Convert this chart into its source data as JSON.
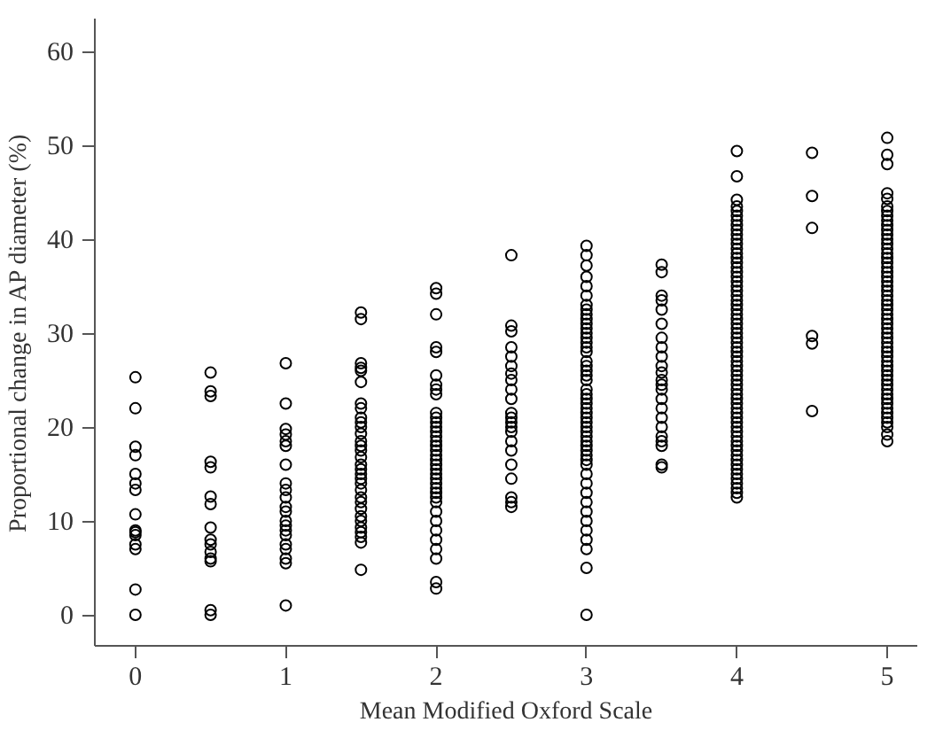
{
  "chart_data": {
    "type": "scatter",
    "xlabel": "Mean Modified Oxford Scale",
    "ylabel": "Proportional change in AP diameter (%)",
    "xlim": [
      -0.27,
      5.2
    ],
    "ylim": [
      -3.3,
      63.5
    ],
    "xticks": [
      0,
      1,
      2,
      3,
      4,
      5
    ],
    "yticks": [
      0,
      10,
      20,
      30,
      40,
      50,
      60
    ],
    "grid": false,
    "marker": "circle",
    "series": [
      {
        "color": "#000000",
        "x": [
          0,
          0,
          0,
          0,
          0,
          0,
          0,
          0,
          0,
          0,
          0,
          0,
          0,
          0,
          0
        ],
        "values": [
          25.3,
          22,
          17.9,
          17,
          15,
          14,
          13.3,
          10.7,
          9,
          8.8,
          8.5,
          7.5,
          7,
          2.7,
          0
        ]
      },
      {
        "color": "#000000",
        "x": [
          0.5,
          0.5,
          0.5,
          0.5,
          0.5,
          0.5,
          0.5,
          0.5,
          0.5,
          0.5,
          0.5,
          0.5,
          0.5,
          0.5,
          0.5
        ],
        "values": [
          25.8,
          23.8,
          23.3,
          16.3,
          15.7,
          12.6,
          11.8,
          9.3,
          8,
          7.5,
          6.7,
          6,
          5.7,
          0.5,
          0
        ]
      },
      {
        "color": "#000000",
        "x": [
          1,
          1,
          1,
          1,
          1,
          1,
          1,
          1,
          1,
          1,
          1,
          1,
          1,
          1,
          1,
          1,
          1,
          1,
          1,
          1,
          1
        ],
        "values": [
          26.8,
          22.5,
          19.8,
          19.2,
          18.5,
          18,
          16,
          14,
          13.3,
          12.5,
          11.5,
          11,
          10,
          9.5,
          9,
          8.5,
          7.5,
          7,
          6,
          5.5,
          1
        ]
      },
      {
        "color": "#000000",
        "x": [
          1.5,
          1.5,
          1.5,
          1.5,
          1.5,
          1.5,
          1.5,
          1.5,
          1.5,
          1.5,
          1.5,
          1.5,
          1.5,
          1.5,
          1.5,
          1.5,
          1.5,
          1.5,
          1.5,
          1.5,
          1.5,
          1.5,
          1.5,
          1.5,
          1.5,
          1.5,
          1.5,
          1.5,
          1.5,
          1.5,
          1.5,
          1.5
        ],
        "values": [
          32.2,
          31.5,
          26.8,
          26.3,
          26,
          24.8,
          22.5,
          22,
          21,
          20.5,
          20,
          19.3,
          18.5,
          18,
          17.5,
          16.8,
          16,
          15.5,
          15,
          14.5,
          14,
          13.3,
          12.5,
          12,
          11.3,
          10.5,
          10,
          9.3,
          8.8,
          8.3,
          7.7,
          4.8
        ]
      },
      {
        "color": "#000000",
        "x": [
          2,
          2,
          2,
          2,
          2,
          2,
          2,
          2,
          2,
          2,
          2,
          2,
          2,
          2,
          2,
          2,
          2,
          2,
          2,
          2,
          2,
          2,
          2,
          2,
          2,
          2,
          2,
          2,
          2,
          2,
          2,
          2,
          2,
          2,
          2,
          2,
          2
        ],
        "values": [
          34.8,
          34.2,
          32,
          28.5,
          28,
          25.5,
          24.5,
          24,
          23.5,
          21.5,
          21,
          20.5,
          20,
          19.5,
          19,
          18.5,
          18,
          17.5,
          17,
          16.5,
          16,
          15.5,
          15,
          14.5,
          14,
          13.5,
          13,
          12.5,
          12,
          11,
          10,
          9,
          8,
          7,
          6,
          3.5,
          2.8
        ]
      },
      {
        "color": "#000000",
        "x": [
          2.5,
          2.5,
          2.5,
          2.5,
          2.5,
          2.5,
          2.5,
          2.5,
          2.5,
          2.5,
          2.5,
          2.5,
          2.5,
          2.5,
          2.5,
          2.5,
          2.5,
          2.5,
          2.5,
          2.5,
          2.5,
          2.5
        ],
        "values": [
          38.3,
          30.8,
          30.2,
          28.5,
          27.5,
          26.5,
          25.7,
          25,
          24,
          23,
          21.5,
          21,
          20.5,
          20,
          19.5,
          18.5,
          17.5,
          16,
          14.5,
          12.5,
          12,
          11.5
        ]
      },
      {
        "color": "#000000",
        "x": [
          3,
          3,
          3,
          3,
          3,
          3,
          3,
          3,
          3,
          3,
          3,
          3,
          3,
          3,
          3,
          3,
          3,
          3,
          3,
          3,
          3,
          3,
          3,
          3,
          3,
          3,
          3,
          3,
          3,
          3,
          3,
          3,
          3,
          3,
          3,
          3,
          3,
          3,
          3,
          3,
          3,
          3,
          3,
          3,
          3,
          3,
          3,
          3,
          3,
          3
        ],
        "values": [
          39.3,
          38.3,
          37.2,
          36,
          35,
          34,
          33,
          32.5,
          32,
          31.5,
          31,
          30.5,
          30,
          29.5,
          29,
          28.5,
          28,
          27,
          26.5,
          26,
          25.5,
          25,
          24,
          23.5,
          23,
          22.5,
          22,
          21.5,
          21,
          20.5,
          20,
          19.5,
          19,
          18.5,
          18,
          17.5,
          17,
          16.5,
          16,
          15,
          14,
          13,
          12,
          11,
          10,
          9,
          8,
          7,
          5,
          0
        ]
      },
      {
        "color": "#000000",
        "x": [
          3.5,
          3.5,
          3.5,
          3.5,
          3.5,
          3.5,
          3.5,
          3.5,
          3.5,
          3.5,
          3.5,
          3.5,
          3.5,
          3.5,
          3.5,
          3.5,
          3.5,
          3.5,
          3.5,
          3.5,
          3.5,
          3.5,
          3.5
        ],
        "values": [
          37.3,
          36.5,
          34,
          33.5,
          32.5,
          31,
          29.5,
          28.5,
          27.5,
          26.5,
          25.8,
          25,
          24.5,
          24,
          23,
          22,
          21,
          20,
          19,
          18.5,
          18,
          16,
          15.7
        ]
      },
      {
        "color": "#000000",
        "x": [
          4,
          4,
          4,
          4,
          4,
          4,
          4,
          4,
          4,
          4,
          4,
          4,
          4,
          4,
          4,
          4,
          4,
          4,
          4,
          4,
          4,
          4,
          4,
          4,
          4,
          4,
          4,
          4,
          4,
          4,
          4,
          4,
          4,
          4,
          4,
          4,
          4,
          4,
          4,
          4,
          4,
          4,
          4,
          4,
          4,
          4,
          4,
          4,
          4,
          4,
          4,
          4,
          4,
          4,
          4,
          4,
          4,
          4,
          4,
          4,
          4,
          4,
          4,
          4,
          4,
          4
        ],
        "values": [
          49.4,
          46.7,
          44.2,
          43.5,
          43,
          42.5,
          42,
          41.5,
          41,
          40.5,
          40,
          39.5,
          39,
          38.5,
          38,
          37.5,
          37,
          36.5,
          36,
          35.5,
          35,
          34.5,
          34,
          33.5,
          33,
          32.5,
          32,
          31.5,
          31,
          30.5,
          30,
          29.5,
          29,
          28.5,
          28,
          27.5,
          27,
          26.5,
          26,
          25.5,
          25,
          24.5,
          24,
          23.5,
          23,
          22.5,
          22,
          21.5,
          21,
          20.5,
          20,
          19.5,
          19,
          18.5,
          18,
          17.5,
          17,
          16.5,
          16,
          15.5,
          15,
          14.5,
          14,
          13.5,
          13,
          12.5
        ]
      },
      {
        "color": "#000000",
        "x": [
          4.5,
          4.5,
          4.5,
          4.5,
          4.5,
          4.5
        ],
        "values": [
          49.2,
          44.6,
          41.2,
          29.7,
          28.9,
          21.7
        ]
      },
      {
        "color": "#000000",
        "x": [
          5,
          5,
          5,
          5,
          5,
          5,
          5,
          5,
          5,
          5,
          5,
          5,
          5,
          5,
          5,
          5,
          5,
          5,
          5,
          5,
          5,
          5,
          5,
          5,
          5,
          5,
          5,
          5,
          5,
          5,
          5,
          5,
          5,
          5,
          5,
          5,
          5,
          5,
          5,
          5,
          5,
          5,
          5,
          5,
          5,
          5,
          5,
          5,
          5,
          5,
          5,
          5,
          5,
          5,
          5
        ],
        "values": [
          50.8,
          49,
          48,
          44.9,
          44.3,
          43.5,
          43,
          42.5,
          42,
          41.5,
          41,
          40.5,
          40,
          39.5,
          39,
          38.5,
          38,
          37.5,
          37,
          36.5,
          36,
          35.5,
          35,
          34.5,
          34,
          33.5,
          33,
          32.5,
          32,
          31.5,
          31,
          30.5,
          30,
          29.5,
          29,
          28.5,
          28,
          27.5,
          27,
          26.5,
          26,
          25.5,
          25,
          24.5,
          24,
          23.5,
          23,
          22.5,
          22,
          21.5,
          21,
          20.5,
          20,
          19.2,
          18.5
        ]
      }
    ]
  }
}
